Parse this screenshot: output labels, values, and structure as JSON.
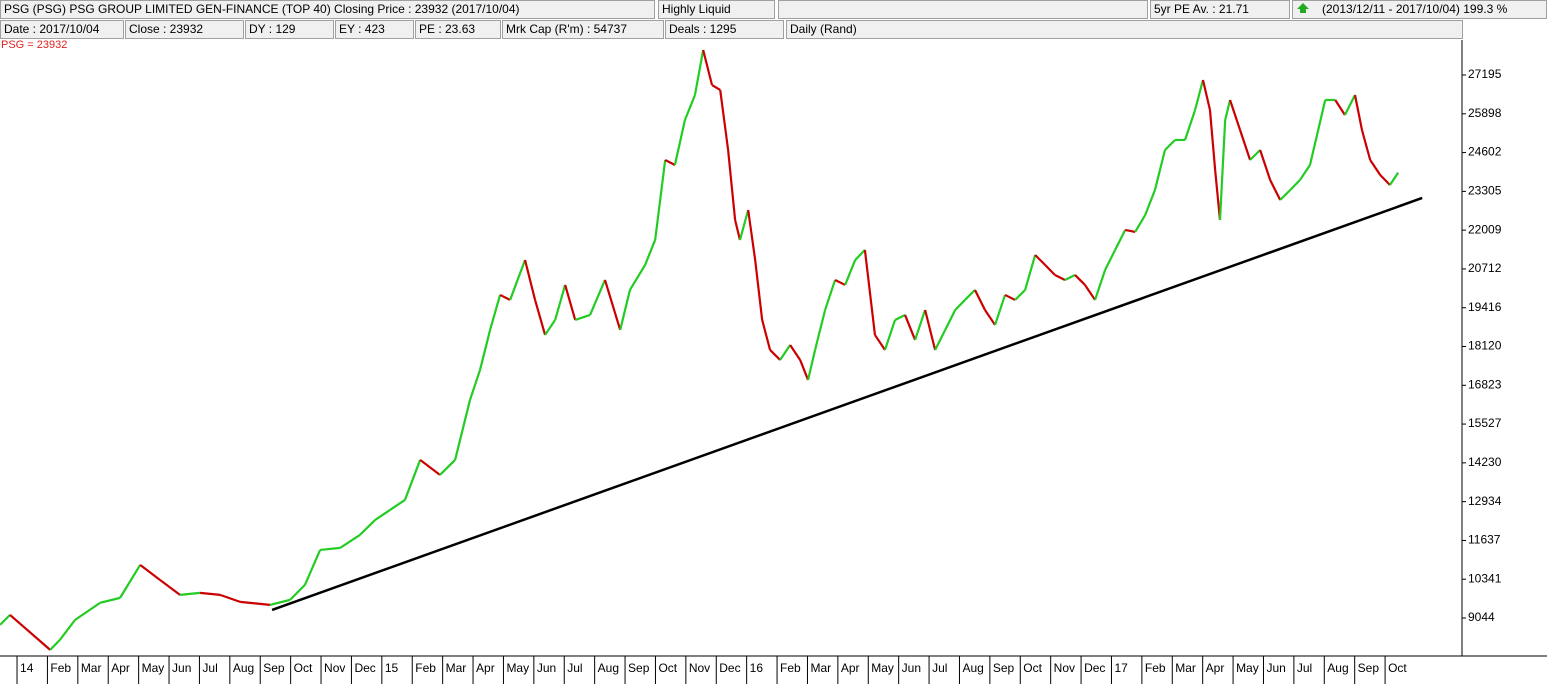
{
  "chart_data": {
    "type": "price",
    "header_row1": [
      "PSG   (PSG)   PSG GROUP LIMITED   GEN-FINANCE (TOP 40)   Closing Price : 23932   (2017/10/04)",
      "Highly Liquid",
      "5yr PE Av. : 21.71",
      "(2013/12/11 - 2017/10/04)  199.3 %"
    ],
    "header_row2": [
      "Date : 2017/10/04",
      "Close : 23932",
      "DY : 129",
      "EY : 423",
      "PE : 23.63",
      "Mrk Cap (R'm) : 54737",
      "Deals : 1295",
      "Daily (Rand)"
    ],
    "series_label": "PSG = 23932",
    "up_color": "#22cc22",
    "down_color": "#cc0000",
    "x": [
      -0.56,
      -0.23,
      1.09,
      1.41,
      1.91,
      2.73,
      3.39,
      4.05,
      4.7,
      5.36,
      6.02,
      6.68,
      7.34,
      8.32,
      8.98,
      9.47,
      9.97,
      10.63,
      11.28,
      11.78,
      12.27,
      12.76,
      13.26,
      13.91,
      14.41,
      14.9,
      15.23,
      15.56,
      15.89,
      16.22,
      16.71,
      17.04,
      17.37,
      17.7,
      18.03,
      18.36,
      18.85,
      19.34,
      19.84,
      20.16,
      20.66,
      20.99,
      21.32,
      21.64,
      21.97,
      22.3,
      22.57,
      22.86,
      23.13,
      23.39,
      23.62,
      23.78,
      24.05,
      24.28,
      24.51,
      24.77,
      25.1,
      25.43,
      25.76,
      26.02,
      26.25,
      26.58,
      26.91,
      27.24,
      27.57,
      27.89,
      28.22,
      28.55,
      28.88,
      29.21,
      29.54,
      29.87,
      30.2,
      30.53,
      30.86,
      31.18,
      31.51,
      31.84,
      32.17,
      32.5,
      32.83,
      33.16,
      33.49,
      33.82,
      34.14,
      34.47,
      34.8,
      35.13,
      35.46,
      35.79,
      36.12,
      36.45,
      36.78,
      37.11,
      37.43,
      37.76,
      38.09,
      38.42,
      38.75,
      39.01,
      39.24,
      39.41,
      39.57,
      39.74,
      39.9,
      40.23,
      40.56,
      40.89,
      41.22,
      41.55,
      41.88,
      42.2,
      42.53,
      42.8,
      43.03,
      43.36,
      43.68,
      44.01,
      44.24,
      44.51,
      44.84,
      45.16,
      45.43
    ],
    "values": [
      8814,
      9148,
      7979,
      8313,
      8981,
      9550,
      9717,
      10819,
      10318,
      9817,
      9884,
      9817,
      9583,
      9482,
      9650,
      10151,
      11320,
      11388,
      11822,
      12323,
      12657,
      12991,
      14328,
      13827,
      14328,
      16333,
      17336,
      18673,
      19843,
      19676,
      21012,
      19676,
      18506,
      19007,
      20177,
      19007,
      19174,
      20344,
      18673,
      20010,
      20845,
      21681,
      24354,
      24187,
      25691,
      26527,
      28031,
      26860,
      26694,
      24689,
      22349,
      21681,
      22683,
      21012,
      19007,
      18004,
      17670,
      18171,
      17670,
      17002,
      18004,
      19341,
      20344,
      20177,
      21012,
      21347,
      18506,
      18004,
      19007,
      19174,
      18339,
      19341,
      18004,
      18673,
      19341,
      19676,
      20010,
      19341,
      18840,
      19843,
      19676,
      20010,
      21179,
      20845,
      20511,
      20344,
      20511,
      20177,
      19676,
      20678,
      21347,
      22015,
      21948,
      22516,
      23352,
      24689,
      25023,
      25023,
      26025,
      27028,
      26025,
      24020,
      22349,
      25691,
      26360,
      25357,
      24354,
      24689,
      23686,
      23018,
      23352,
      23686,
      24187,
      25357,
      26360,
      26360,
      25858,
      26527,
      25357,
      24354,
      23853,
      23519,
      23932
    ],
    "trendline": {
      "x": [
        8.39,
        46.22
      ],
      "values": [
        9315,
        23084
      ]
    },
    "xlim": [
      -0.56,
      47.53
    ],
    "ylim": [
      7774,
      28365
    ],
    "yticks": [
      9044,
      10341,
      11637,
      12934,
      14230,
      15527,
      16823,
      18120,
      19416,
      20712,
      22009,
      23305,
      24602,
      25898,
      27195
    ],
    "xticks": [
      {
        "value": 0,
        "label": "14"
      },
      {
        "value": 1,
        "label": "Feb"
      },
      {
        "value": 2,
        "label": "Mar"
      },
      {
        "value": 3,
        "label": "Apr"
      },
      {
        "value": 4,
        "label": "May"
      },
      {
        "value": 5,
        "label": "Jun"
      },
      {
        "value": 6,
        "label": "Jul"
      },
      {
        "value": 7,
        "label": "Aug"
      },
      {
        "value": 8,
        "label": "Sep"
      },
      {
        "value": 9,
        "label": "Oct"
      },
      {
        "value": 10,
        "label": "Nov"
      },
      {
        "value": 11,
        "label": "Dec"
      },
      {
        "value": 12,
        "label": "15"
      },
      {
        "value": 13,
        "label": "Feb"
      },
      {
        "value": 14,
        "label": "Mar"
      },
      {
        "value": 15,
        "label": "Apr"
      },
      {
        "value": 16,
        "label": "May"
      },
      {
        "value": 17,
        "label": "Jun"
      },
      {
        "value": 18,
        "label": "Jul"
      },
      {
        "value": 19,
        "label": "Aug"
      },
      {
        "value": 20,
        "label": "Sep"
      },
      {
        "value": 21,
        "label": "Oct"
      },
      {
        "value": 22,
        "label": "Nov"
      },
      {
        "value": 23,
        "label": "Dec"
      },
      {
        "value": 24,
        "label": "16"
      },
      {
        "value": 25,
        "label": "Feb"
      },
      {
        "value": 26,
        "label": "Mar"
      },
      {
        "value": 27,
        "label": "Apr"
      },
      {
        "value": 28,
        "label": "May"
      },
      {
        "value": 29,
        "label": "Jun"
      },
      {
        "value": 30,
        "label": "Jul"
      },
      {
        "value": 31,
        "label": "Aug"
      },
      {
        "value": 32,
        "label": "Sep"
      },
      {
        "value": 33,
        "label": "Oct"
      },
      {
        "value": 34,
        "label": "Nov"
      },
      {
        "value": 35,
        "label": "Dec"
      },
      {
        "value": 36,
        "label": "17"
      },
      {
        "value": 37,
        "label": "Feb"
      },
      {
        "value": 38,
        "label": "Mar"
      },
      {
        "value": 39,
        "label": "Apr"
      },
      {
        "value": 40,
        "label": "May"
      },
      {
        "value": 41,
        "label": "Jun"
      },
      {
        "value": 42,
        "label": "Jul"
      },
      {
        "value": 43,
        "label": "Aug"
      },
      {
        "value": 44,
        "label": "Sep"
      },
      {
        "value": 45,
        "label": "Oct"
      }
    ]
  }
}
